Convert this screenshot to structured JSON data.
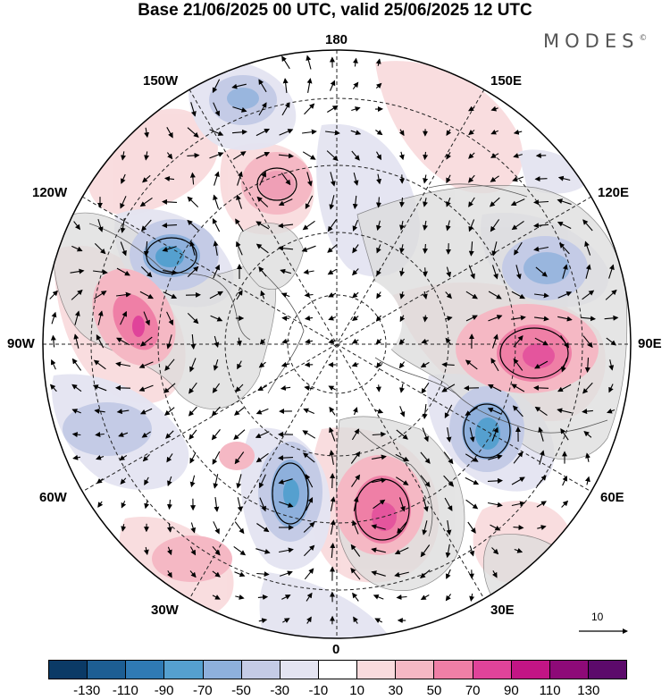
{
  "title": "Base 21/06/2025 00 UTC, valid 25/06/2025 12 UTC",
  "brand": "MODES",
  "brand_mark": "©",
  "longitude_labels": {
    "top": "180",
    "bottom": "0",
    "left": "90W",
    "right": "90E",
    "upper_left_1": "150W",
    "upper_left_2": "120W",
    "lower_left_1": "60W",
    "lower_left_2": "30W",
    "upper_right_1": "150E",
    "upper_right_2": "120E",
    "lower_right_1": "60E",
    "lower_right_2": "30E"
  },
  "vector_scale_label": "10",
  "colorbar": {
    "colors": [
      "#0b3a66",
      "#1d5e93",
      "#2f7ab4",
      "#55a0cf",
      "#8eb0dc",
      "#c4cbe6",
      "#e4e4f1",
      "#ffffff",
      "#f9dbdd",
      "#f5b8c4",
      "#ef7fa6",
      "#e0439a",
      "#c21585",
      "#8e0a78",
      "#5c0a6b"
    ],
    "tick_labels": [
      "-130",
      "-110",
      "-90",
      "-70",
      "-50",
      "-30",
      "-10",
      "10",
      "30",
      "50",
      "70",
      "90",
      "110",
      "130"
    ]
  }
}
